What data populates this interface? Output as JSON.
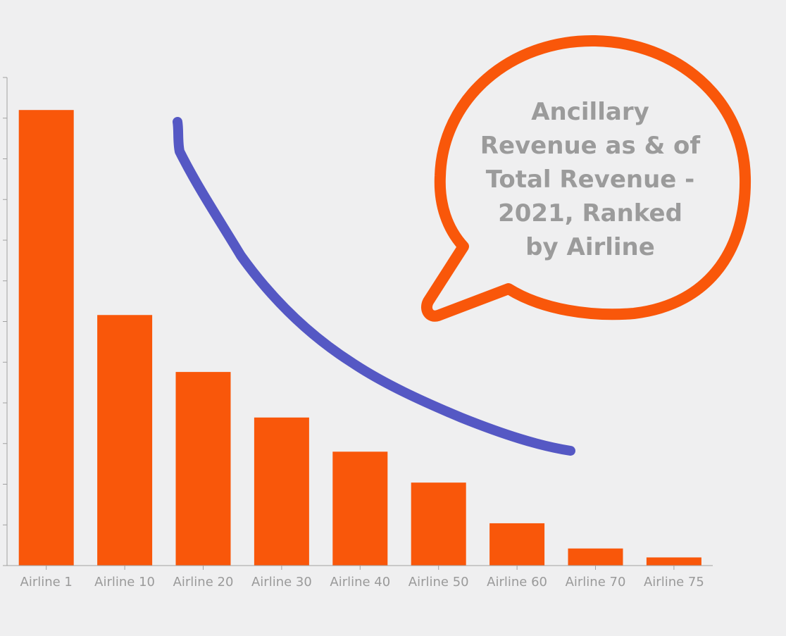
{
  "chart_data": {
    "type": "bar",
    "title": "Ancillary Revenue as & of Total Revenue - 2021, Ranked by Airline",
    "title_lines": [
      "Ancillary",
      "Revenue as & of",
      "Total Revenue -",
      "2021, Ranked",
      "by Airline"
    ],
    "categories": [
      "Airline 1",
      "Airline 10",
      "Airline 20",
      "Airline 30",
      "Airline 40",
      "Airline 50",
      "Airline 60",
      "Airline 70",
      "Airline 75"
    ],
    "values": [
      56,
      30.8,
      23.8,
      18.2,
      14,
      10.2,
      5.2,
      2.1,
      1
    ],
    "ylim": [
      0,
      60
    ],
    "y_tick_count": 13,
    "y_tick_labels_visible": false,
    "grid": false,
    "legend": "none",
    "trend_curve": true,
    "callout": "speech-bubble",
    "colors": {
      "bar": "#f9570a",
      "trend": "#5558c4",
      "bubble": "#f9570a",
      "title_text": "#9b9b9b",
      "tick_text": "#9a9a9a",
      "axis": "#a0a0a0",
      "background": "#efeff0"
    }
  }
}
